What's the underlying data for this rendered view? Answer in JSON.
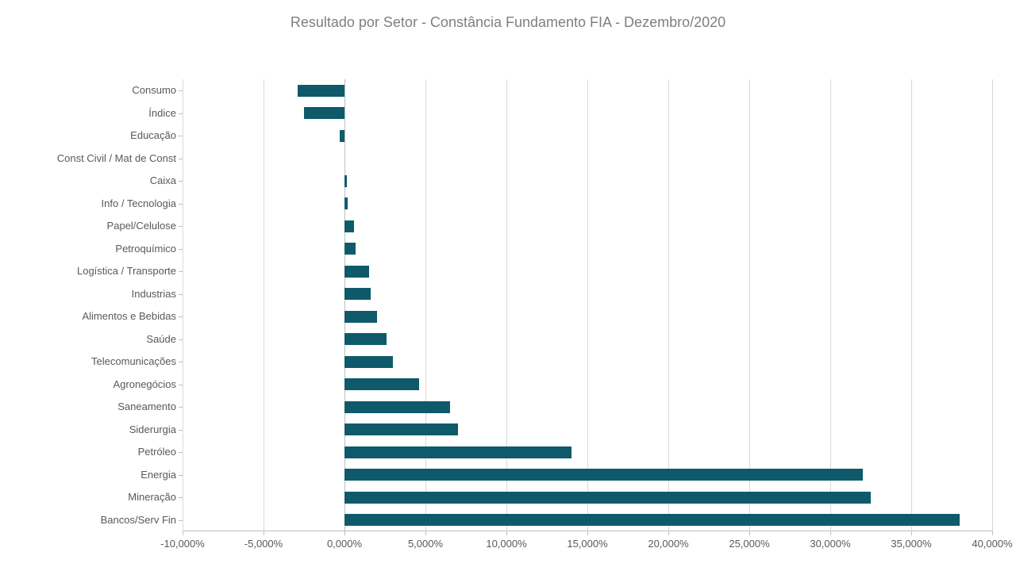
{
  "chart": {
    "type": "bar-horizontal",
    "title": "Resultado por Setor - Constância Fundamento FIA - Dezembro/2020",
    "title_color": "#7f7f7f",
    "title_fontsize": 18,
    "background_color": "#ffffff",
    "bar_color": "#0e5a6b",
    "grid_color": "#d9d9d9",
    "axis_color": "#bfbfbf",
    "label_color": "#595959",
    "label_fontsize": 13,
    "bar_thickness_ratio": 0.53,
    "x_axis": {
      "min": -10.0,
      "max": 40.0,
      "step": 5.0,
      "tick_labels": [
        "-10,000%",
        "-5,000%",
        "0,000%",
        "5,000%",
        "10,000%",
        "15,000%",
        "20,000%",
        "25,000%",
        "30,000%",
        "35,000%",
        "40,000%"
      ]
    },
    "series": [
      {
        "label": "Consumo",
        "value": -2.9
      },
      {
        "label": "Índice",
        "value": -2.5
      },
      {
        "label": "Educação",
        "value": -0.3
      },
      {
        "label": "Const Civil / Mat de Const",
        "value": 0.0
      },
      {
        "label": "Caixa",
        "value": 0.15
      },
      {
        "label": "Info / Tecnologia",
        "value": 0.2
      },
      {
        "label": "Papel/Celulose",
        "value": 0.6
      },
      {
        "label": "Petroquímico",
        "value": 0.7
      },
      {
        "label": "Logística / Transporte",
        "value": 1.5
      },
      {
        "label": "Industrias",
        "value": 1.6
      },
      {
        "label": "Alimentos e Bebidas",
        "value": 2.0
      },
      {
        "label": "Saúde",
        "value": 2.6
      },
      {
        "label": "Telecomunicações",
        "value": 3.0
      },
      {
        "label": "Agronegócios",
        "value": 4.6
      },
      {
        "label": "Saneamento",
        "value": 6.5
      },
      {
        "label": "Siderurgia",
        "value": 7.0
      },
      {
        "label": "Petróleo",
        "value": 14.0
      },
      {
        "label": "Energia",
        "value": 32.0
      },
      {
        "label": "Mineração",
        "value": 32.5
      },
      {
        "label": "Bancos/Serv Fin",
        "value": 38.0
      }
    ]
  }
}
